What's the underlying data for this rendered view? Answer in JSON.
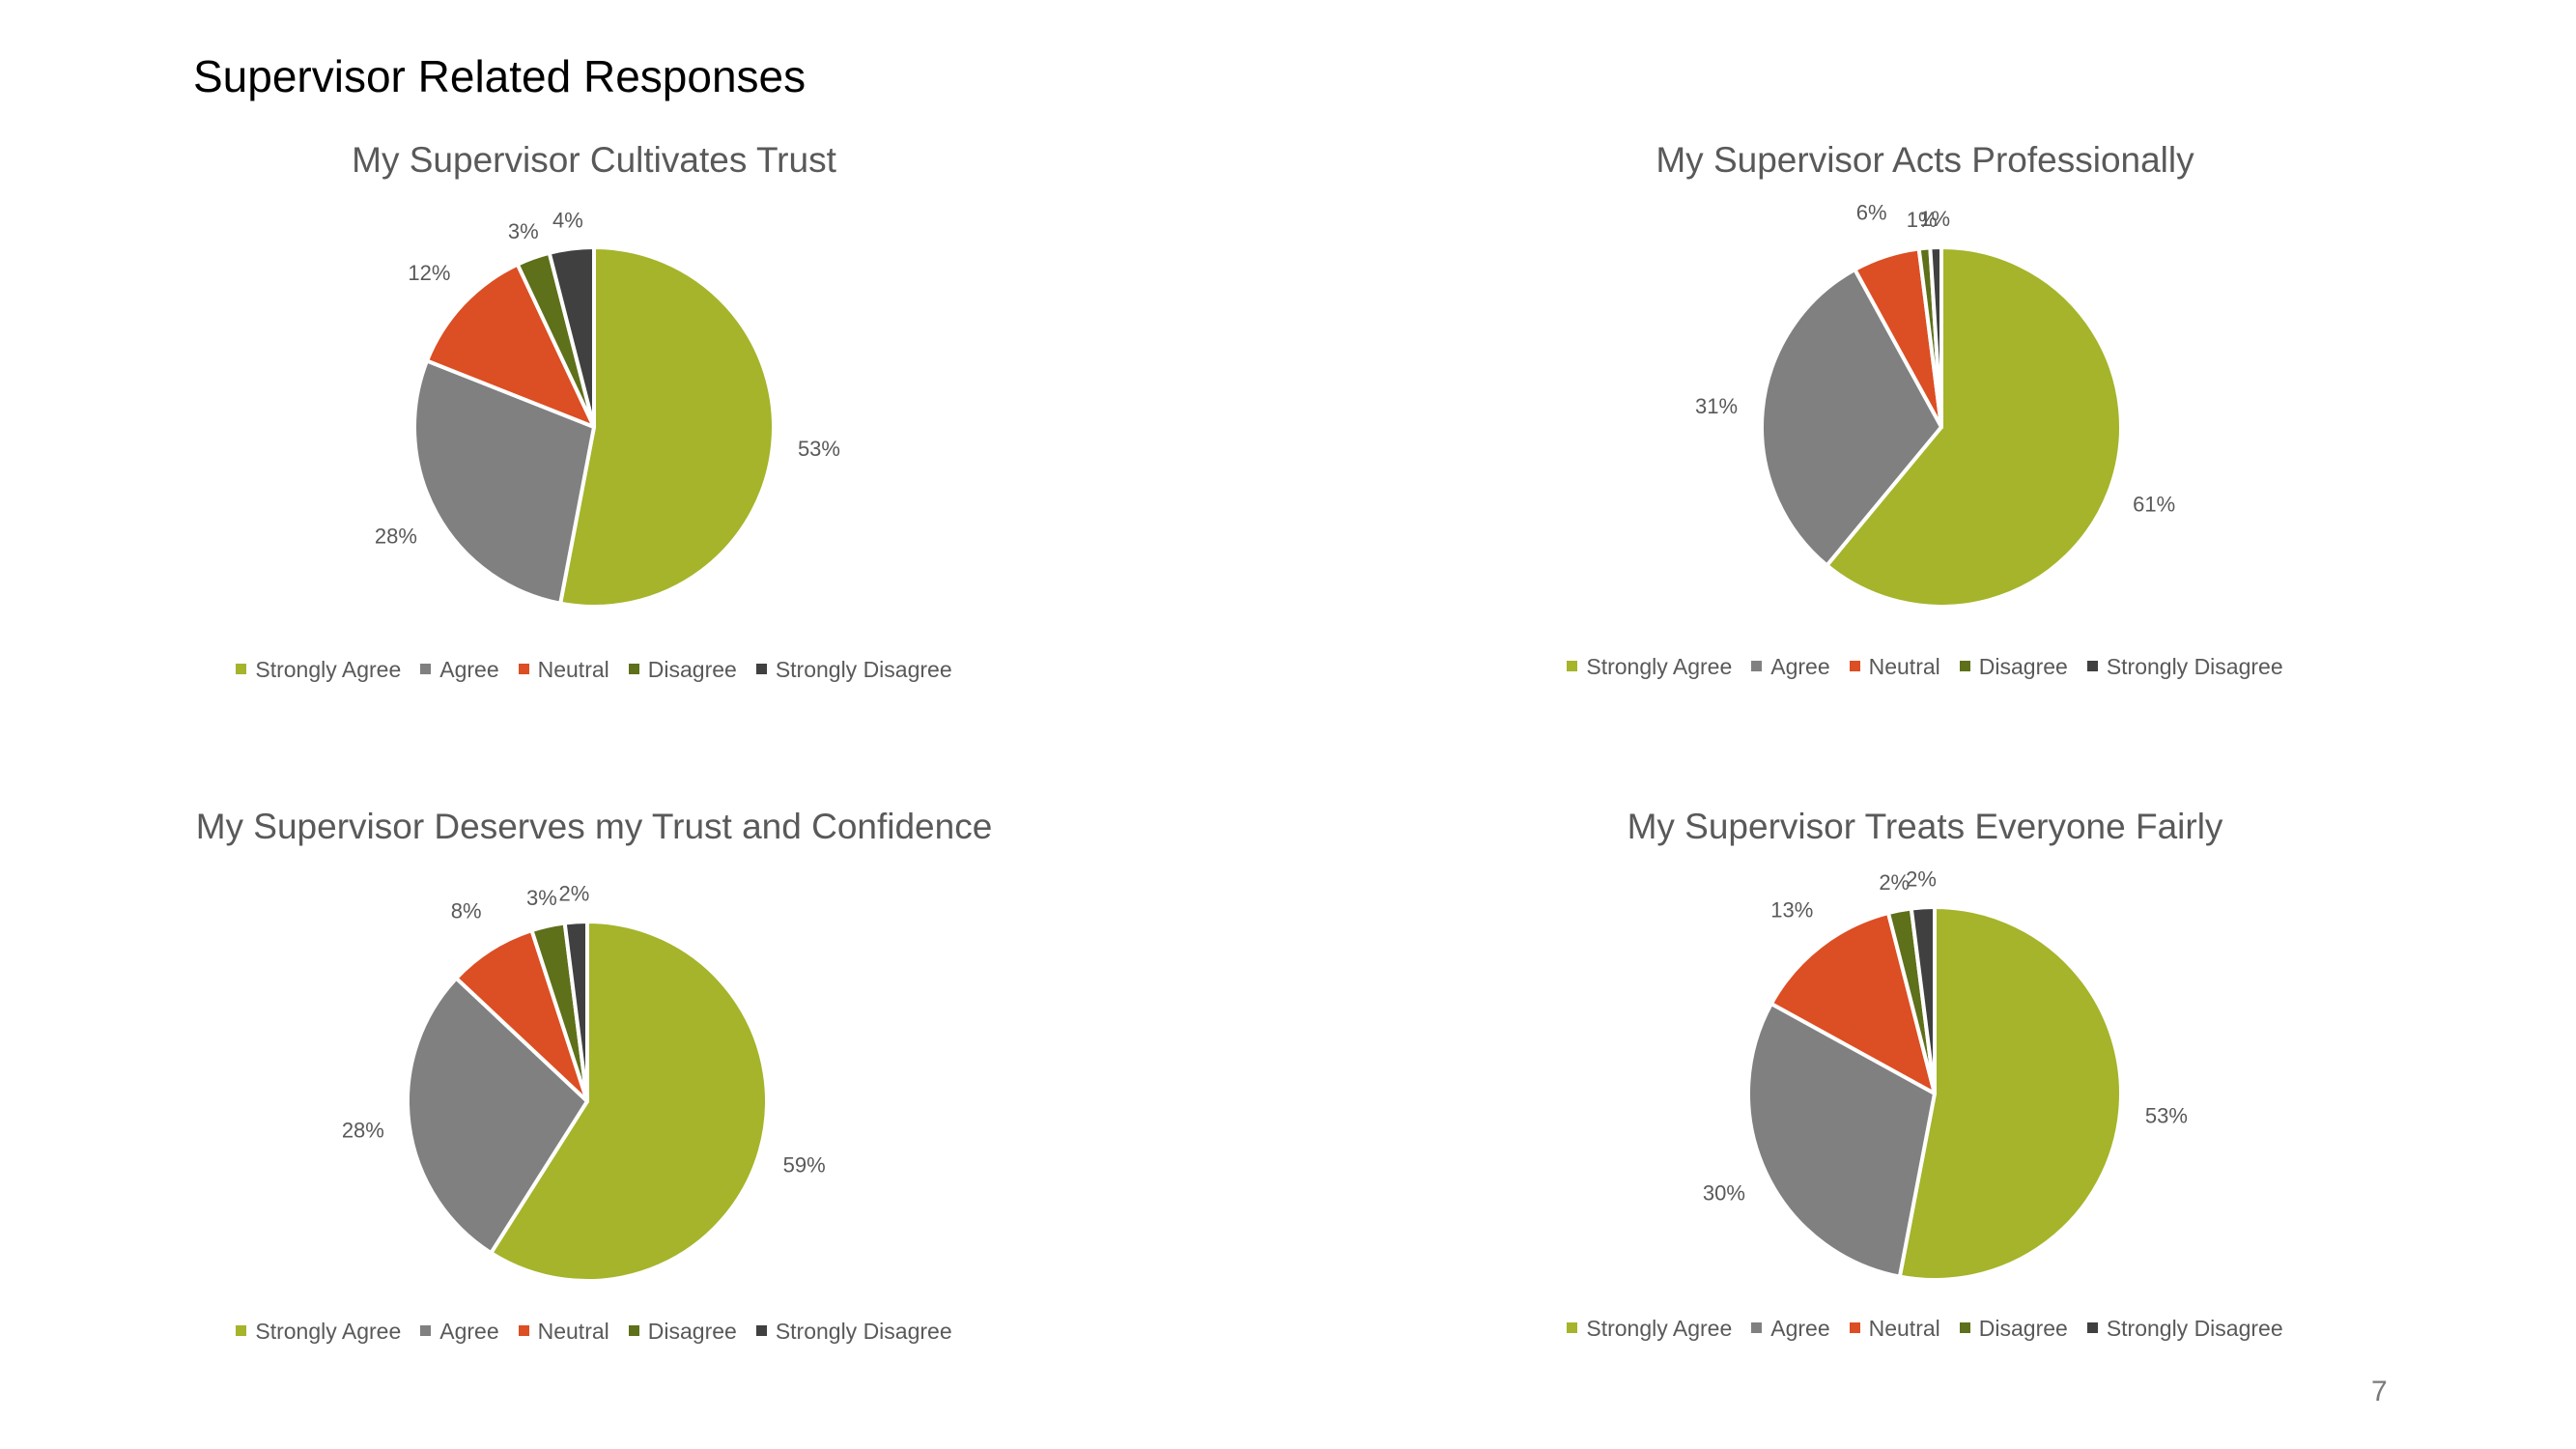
{
  "page": {
    "title": "Supervisor Related Responses",
    "page_number": "7"
  },
  "colors": {
    "Strongly Agree": "#a5b42a",
    "Agree": "#808080",
    "Neutral": "#dc4e23",
    "Disagree": "#5e7019",
    "Strongly Disagree": "#404040"
  },
  "chart_data": [
    {
      "type": "pie",
      "title": "My Supervisor Cultivates Trust",
      "categories": [
        "Strongly Agree",
        "Agree",
        "Neutral",
        "Disagree",
        "Strongly Disagree"
      ],
      "values": [
        53,
        28,
        12,
        3,
        4
      ],
      "labels": [
        "53%",
        "28%",
        "12%",
        "3%",
        "4%"
      ],
      "legend": "bottom"
    },
    {
      "type": "pie",
      "title": "My Supervisor Acts Professionally",
      "categories": [
        "Strongly Agree",
        "Agree",
        "Neutral",
        "Disagree",
        "Strongly Disagree"
      ],
      "values": [
        61,
        31,
        6,
        1,
        1
      ],
      "labels": [
        "61%",
        "31%",
        "6%",
        "1%",
        "1%"
      ],
      "legend": "bottom"
    },
    {
      "type": "pie",
      "title": "My Supervisor Deserves my Trust and Confidence",
      "categories": [
        "Strongly Agree",
        "Agree",
        "Neutral",
        "Disagree",
        "Strongly Disagree"
      ],
      "values": [
        59,
        28,
        8,
        3,
        2
      ],
      "labels": [
        "59%",
        "28%",
        "8%",
        "3%",
        "2%"
      ],
      "legend": "bottom"
    },
    {
      "type": "pie",
      "title": "My Supervisor Treats Everyone Fairly",
      "categories": [
        "Strongly Agree",
        "Agree",
        "Neutral",
        "Disagree",
        "Strongly Disagree"
      ],
      "values": [
        53,
        30,
        13,
        2,
        2
      ],
      "labels": [
        "53%",
        "30%",
        "13%",
        "2%",
        "2%"
      ],
      "legend": "bottom"
    }
  ]
}
